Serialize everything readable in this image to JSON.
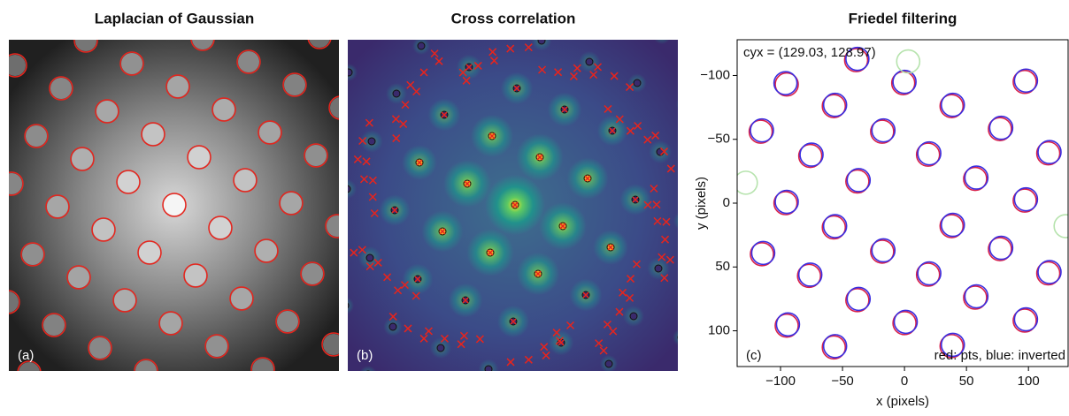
{
  "panels": [
    {
      "title": "Laplacian of Gaussian",
      "label": "(a)"
    },
    {
      "title": "Cross correlation",
      "label": "(b)"
    }
  ],
  "chart_data": {
    "type": "scatter",
    "title": "Friedel filtering",
    "panel_label": "(c)",
    "annotations": [
      "cyx = (129.03, 128.97)",
      "red: pts, blue: inverted"
    ],
    "xlabel": "x (pixels)",
    "ylabel": "y (pixels)",
    "xlim": [
      -135,
      132
    ],
    "ylim": [
      128,
      -128
    ],
    "xticks": [
      {
        "value": -100,
        "label": "−100"
      },
      {
        "value": -50,
        "label": "−50"
      },
      0,
      50,
      100
    ],
    "yticks": [
      {
        "value": -100,
        "label": "−100"
      },
      {
        "value": -50,
        "label": "−50"
      },
      0,
      50,
      100
    ],
    "series": [
      {
        "color": "#d8204a",
        "x": [
          -95,
          -1,
          97,
          -57,
          38,
          -116,
          -18,
          77,
          -76,
          19,
          116,
          -38,
          57,
          -96,
          97,
          -57,
          38,
          -115,
          -18,
          77,
          -77,
          19,
          116,
          -38,
          57,
          -95,
          0,
          97,
          -57,
          38,
          -39
        ],
        "values": [
          -93,
          -94,
          -95,
          -76,
          -76,
          -56,
          -56,
          -58,
          -37,
          -38,
          -39,
          -17,
          -19,
          0,
          -2,
          19,
          18,
          40,
          38,
          36,
          57,
          56,
          55,
          76,
          74,
          96,
          94,
          92,
          113,
          112,
          -112
        ]
      },
      {
        "color": "#3a2ee0",
        "x": [
          -96,
          0,
          98,
          -56,
          39,
          -115,
          -17,
          78,
          -75,
          20,
          117,
          -37,
          58,
          -95,
          98,
          -56,
          39,
          -114,
          -17,
          78,
          -76,
          20,
          117,
          -37,
          58,
          -94,
          1,
          98,
          -56,
          39,
          -38
        ],
        "values": [
          -94,
          -95,
          -96,
          -77,
          -77,
          -57,
          -57,
          -59,
          -38,
          -39,
          -40,
          -18,
          -20,
          -1,
          -3,
          18,
          17,
          39,
          37,
          35,
          56,
          55,
          54,
          75,
          73,
          95,
          93,
          91,
          112,
          111,
          -113
        ]
      },
      {
        "color": "#b6e3ad",
        "x": [
          -128,
          130,
          3
        ],
        "values": [
          -16,
          18,
          -111
        ]
      }
    ]
  }
}
